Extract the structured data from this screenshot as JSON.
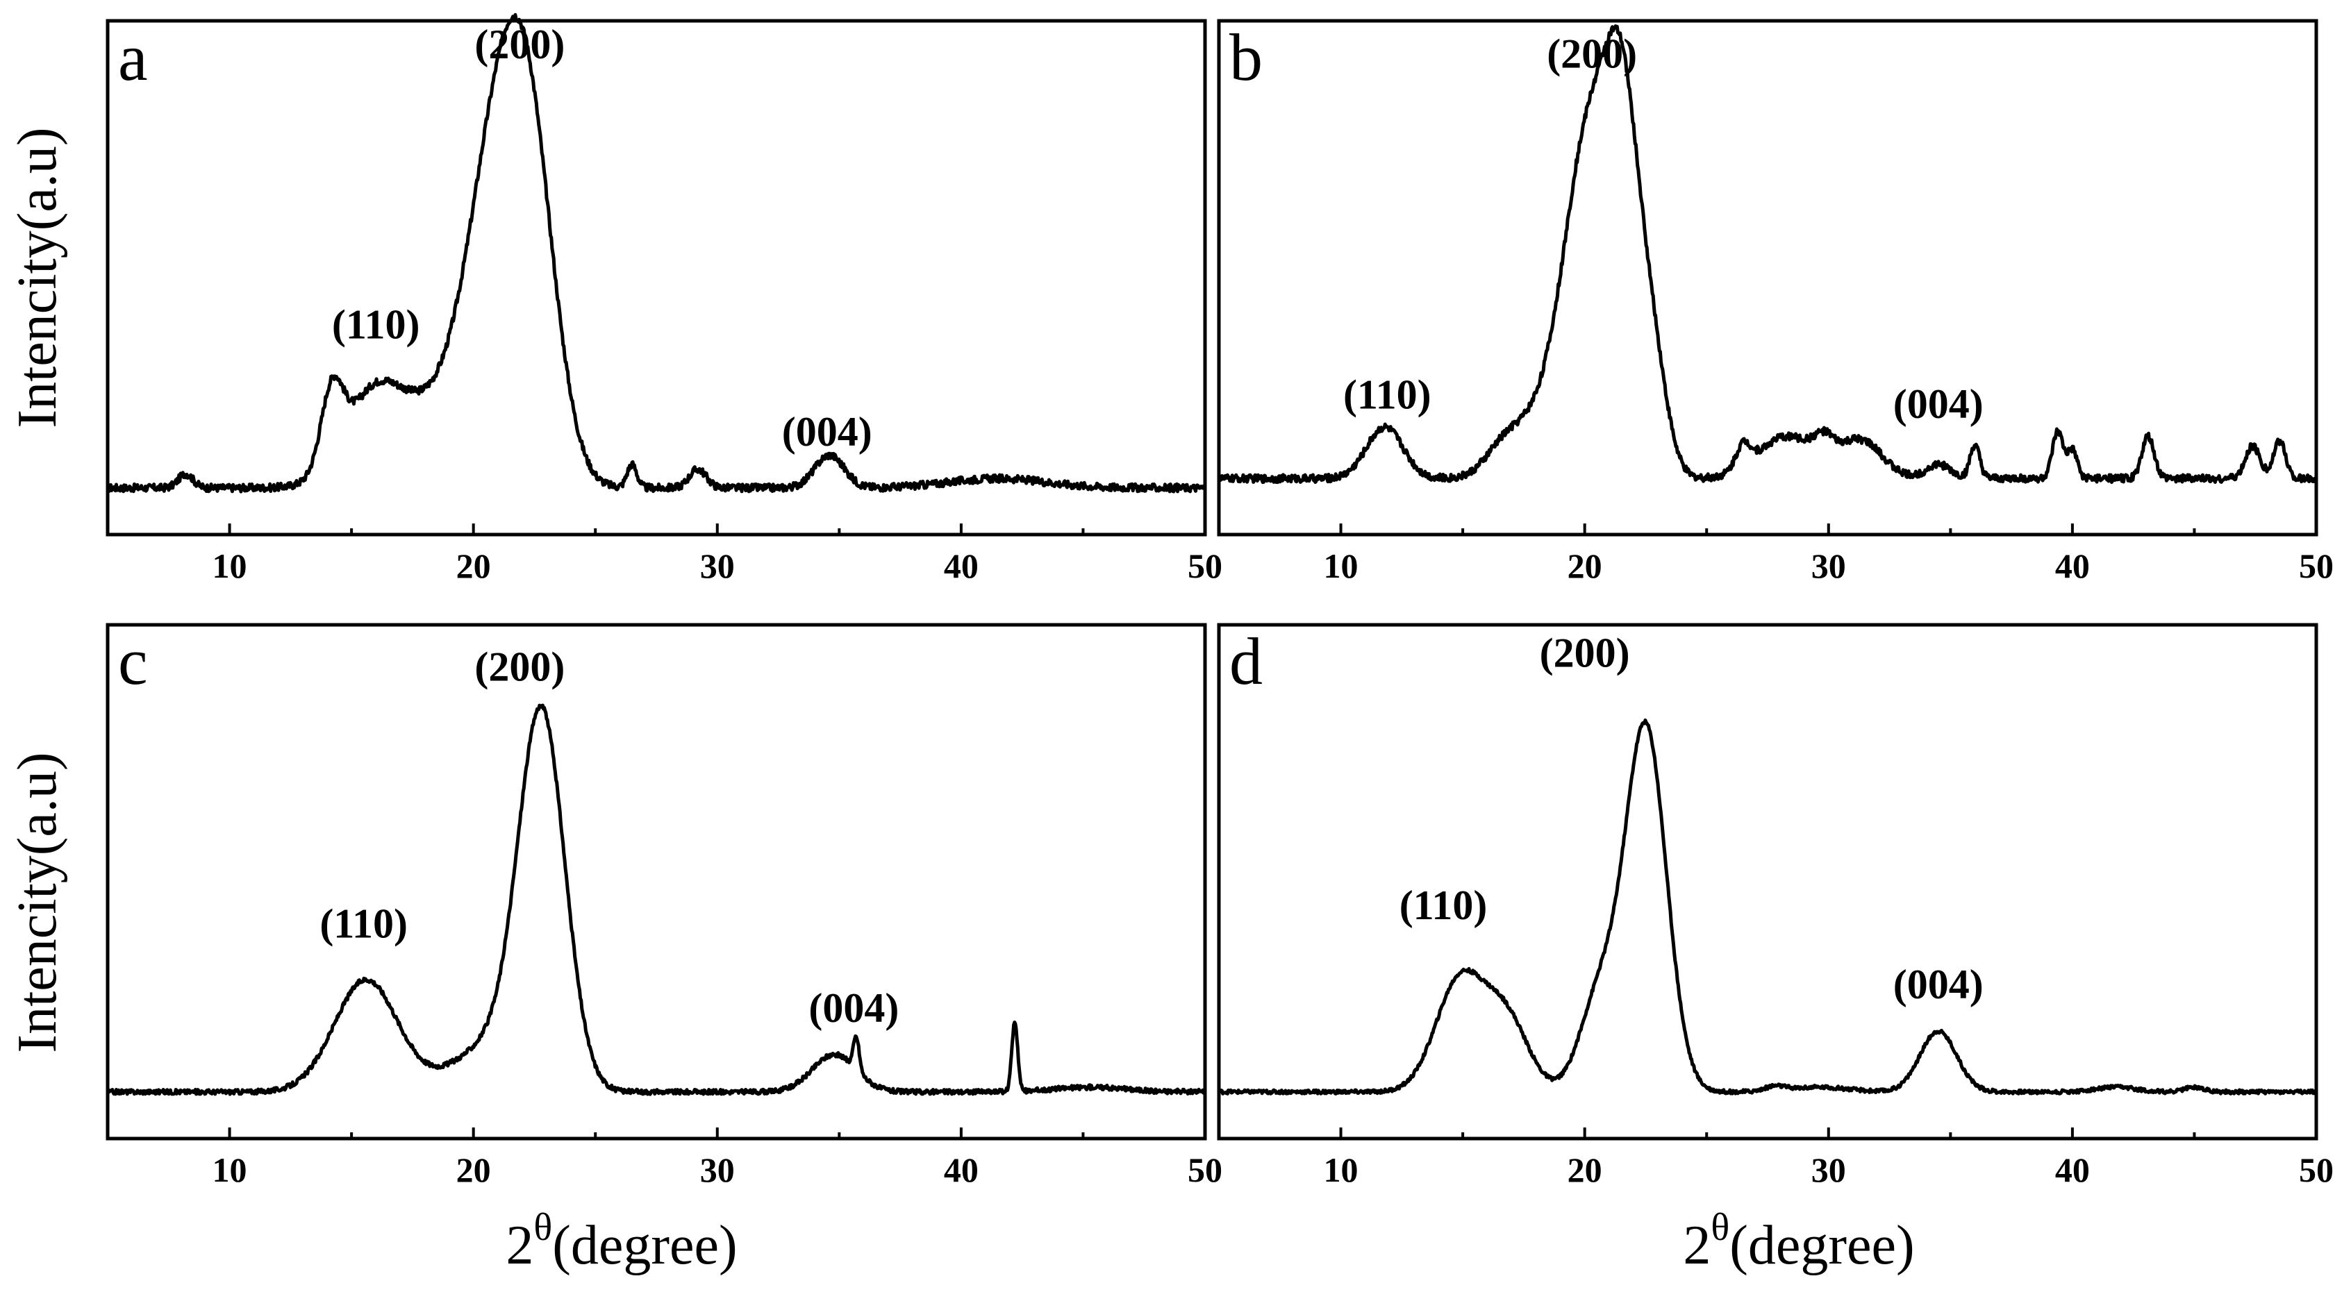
{
  "figure": {
    "y_axis_title": "Intencity(a.u)",
    "x_axis_title_prefix": "2",
    "x_axis_title_superscript": "θ",
    "x_axis_title_suffix": "(degree)",
    "line_color": "#000000"
  },
  "chart_data": [
    {
      "panel": "a",
      "type": "line",
      "xlabel": "2θ(degree)",
      "ylabel": "Intencity(a.u)",
      "xlim": [
        5,
        50
      ],
      "ylim": [
        0,
        1.1
      ],
      "xticks": [
        10,
        20,
        30,
        40,
        50
      ],
      "xtick_labels": [
        "10",
        "20",
        "30",
        "40",
        "50"
      ],
      "show_x_tick_labels": true,
      "show_x_title": false,
      "show_y_title": true,
      "peak_labels": [
        {
          "text": "(110)",
          "x": 16.0,
          "y": 0.42
        },
        {
          "text": "(200)",
          "x": 21.9,
          "y": 1.02
        },
        {
          "text": "(004)",
          "x": 34.5,
          "y": 0.19
        }
      ],
      "baseline": 0.1,
      "noise": 0.008,
      "peaks": [
        {
          "x": 8.2,
          "h": 0.03,
          "w": 0.3
        },
        {
          "x": 14.2,
          "h": 0.16,
          "w": 0.45
        },
        {
          "x": 16.1,
          "h": 0.22,
          "w": 1.3
        },
        {
          "x": 18.3,
          "h": 0.09,
          "w": 1.0
        },
        {
          "x": 20.6,
          "h": 0.55,
          "w": 1.2
        },
        {
          "x": 22.2,
          "h": 0.72,
          "w": 1.1
        },
        {
          "x": 26.5,
          "h": 0.05,
          "w": 0.2
        },
        {
          "x": 29.2,
          "h": 0.04,
          "w": 0.35
        },
        {
          "x": 34.6,
          "h": 0.07,
          "w": 0.6
        },
        {
          "x": 41.5,
          "h": 0.02,
          "w": 2.0
        }
      ]
    },
    {
      "panel": "b",
      "type": "line",
      "xlabel": "2θ(degree)",
      "ylabel": "Intencity(a.u)",
      "xlim": [
        5,
        50
      ],
      "ylim": [
        0,
        1.1
      ],
      "xticks": [
        10,
        20,
        30,
        40,
        50
      ],
      "xtick_labels": [
        "10",
        "20",
        "30",
        "40",
        "50"
      ],
      "show_x_tick_labels": true,
      "show_x_title": false,
      "show_y_title": false,
      "peak_labels": [
        {
          "text": "(110)",
          "x": 11.9,
          "y": 0.27
        },
        {
          "text": "(200)",
          "x": 20.3,
          "y": 1.0
        },
        {
          "text": "(004)",
          "x": 34.5,
          "y": 0.25
        }
      ],
      "baseline": 0.12,
      "noise": 0.008,
      "peaks": [
        {
          "x": 11.8,
          "h": 0.11,
          "w": 0.75
        },
        {
          "x": 16.6,
          "h": 0.04,
          "w": 0.7
        },
        {
          "x": 18.2,
          "h": 0.12,
          "w": 1.2
        },
        {
          "x": 20.2,
          "h": 0.7,
          "w": 1.0
        },
        {
          "x": 21.6,
          "h": 0.62,
          "w": 0.7
        },
        {
          "x": 22.8,
          "h": 0.22,
          "w": 0.6
        },
        {
          "x": 26.5,
          "h": 0.05,
          "w": 0.3
        },
        {
          "x": 28.3,
          "h": 0.09,
          "w": 1.2
        },
        {
          "x": 29.8,
          "h": 0.04,
          "w": 0.4
        },
        {
          "x": 31.3,
          "h": 0.08,
          "w": 0.9
        },
        {
          "x": 34.5,
          "h": 0.03,
          "w": 0.5
        },
        {
          "x": 36.0,
          "h": 0.07,
          "w": 0.2
        },
        {
          "x": 39.4,
          "h": 0.1,
          "w": 0.22
        },
        {
          "x": 40.0,
          "h": 0.06,
          "w": 0.2
        },
        {
          "x": 43.1,
          "h": 0.09,
          "w": 0.25
        },
        {
          "x": 47.4,
          "h": 0.07,
          "w": 0.3
        },
        {
          "x": 48.5,
          "h": 0.08,
          "w": 0.25
        }
      ]
    },
    {
      "panel": "c",
      "type": "line",
      "xlabel": "2θ(degree)",
      "ylabel": "Intencity(a.u)",
      "xlim": [
        5,
        50
      ],
      "ylim": [
        0,
        1.1
      ],
      "xticks": [
        10,
        20,
        30,
        40,
        50
      ],
      "xtick_labels": [
        "10",
        "20",
        "30",
        "40",
        "50"
      ],
      "show_x_tick_labels": true,
      "show_x_title": true,
      "show_y_title": true,
      "peak_labels": [
        {
          "text": "(110)",
          "x": 15.5,
          "y": 0.43
        },
        {
          "text": "(200)",
          "x": 21.9,
          "y": 0.98
        },
        {
          "text": "(004)",
          "x": 35.6,
          "y": 0.25
        }
      ],
      "baseline": 0.1,
      "noise": 0.005,
      "peaks": [
        {
          "x": 15.6,
          "h": 0.24,
          "w": 1.3
        },
        {
          "x": 20.8,
          "h": 0.1,
          "w": 1.6
        },
        {
          "x": 22.8,
          "h": 0.78,
          "w": 0.95
        },
        {
          "x": 34.8,
          "h": 0.08,
          "w": 0.9
        },
        {
          "x": 35.7,
          "h": 0.07,
          "w": 0.12
        },
        {
          "x": 42.2,
          "h": 0.15,
          "w": 0.12
        },
        {
          "x": 45.3,
          "h": 0.01,
          "w": 1.5
        }
      ]
    },
    {
      "panel": "d",
      "type": "line",
      "xlabel": "2θ(degree)",
      "ylabel": "Intencity(a.u)",
      "xlim": [
        5,
        50
      ],
      "ylim": [
        0,
        1.1
      ],
      "xticks": [
        10,
        20,
        30,
        40,
        50
      ],
      "xtick_labels": [
        "10",
        "20",
        "30",
        "40",
        "50"
      ],
      "show_x_tick_labels": true,
      "show_x_title": true,
      "show_y_title": false,
      "peak_labels": [
        {
          "text": "(110)",
          "x": 14.2,
          "y": 0.47
        },
        {
          "text": "(200)",
          "x": 20.0,
          "y": 1.01
        },
        {
          "text": "(004)",
          "x": 34.5,
          "y": 0.3
        }
      ],
      "baseline": 0.1,
      "noise": 0.004,
      "peaks": [
        {
          "x": 14.9,
          "h": 0.24,
          "w": 1.0
        },
        {
          "x": 16.8,
          "h": 0.15,
          "w": 0.9
        },
        {
          "x": 20.6,
          "h": 0.2,
          "w": 0.8
        },
        {
          "x": 22.5,
          "h": 0.78,
          "w": 0.85
        },
        {
          "x": 27.8,
          "h": 0.01,
          "w": 0.4
        },
        {
          "x": 29.6,
          "h": 0.01,
          "w": 1.2
        },
        {
          "x": 34.5,
          "h": 0.13,
          "w": 0.75
        },
        {
          "x": 41.8,
          "h": 0.01,
          "w": 0.8
        },
        {
          "x": 45.0,
          "h": 0.01,
          "w": 0.4
        }
      ]
    }
  ]
}
